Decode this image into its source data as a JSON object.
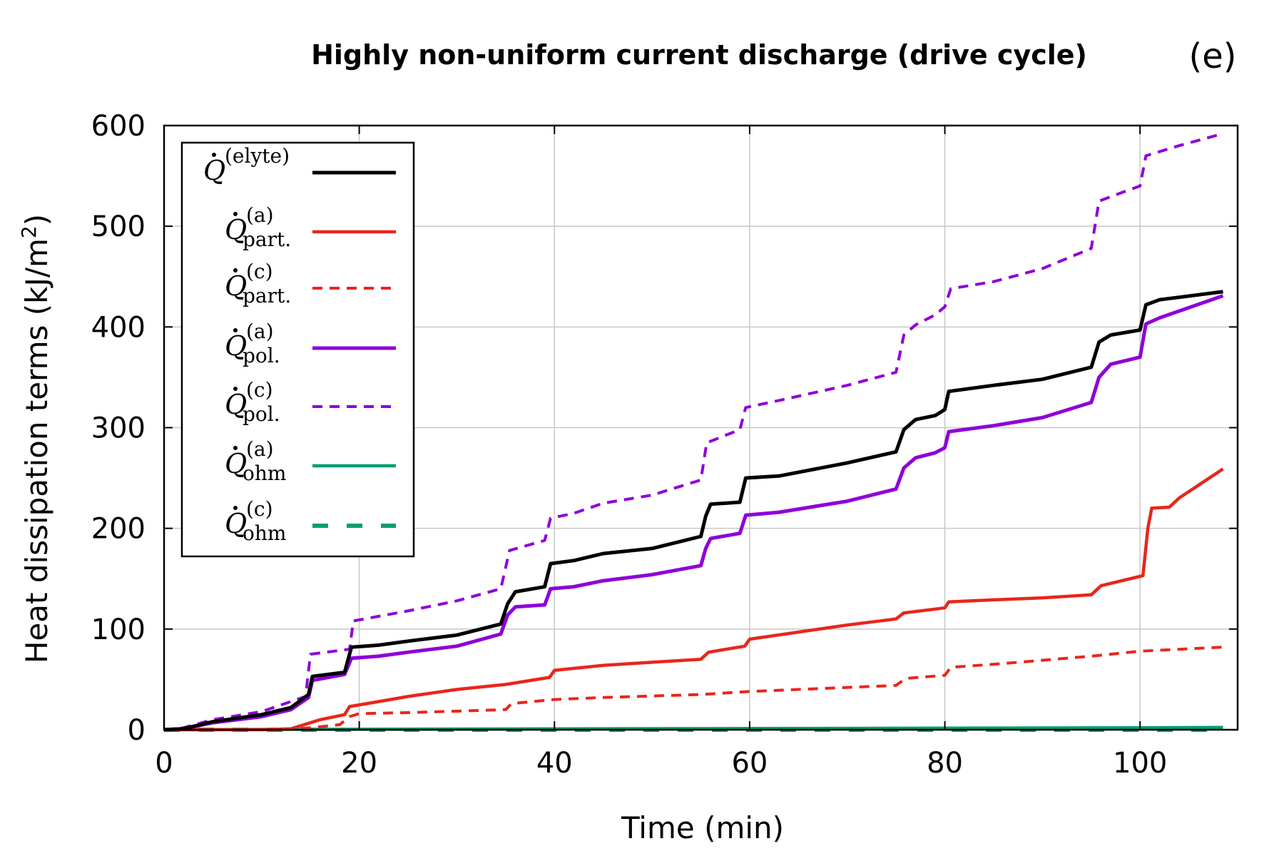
{
  "chart_data": {
    "type": "line",
    "title": "Highly non-uniform current discharge (drive cycle)",
    "panel_label": "(e)",
    "xlabel": "Time (min)",
    "ylabel": "Heat dissipation terms (kJ/m2)",
    "ylabel_unit_base": "Heat dissipation terms (kJ/m",
    "ylabel_unit_sup": "2",
    "ylabel_unit_end": ")",
    "xlim": [
      0,
      110
    ],
    "ylim": [
      0,
      600
    ],
    "xticks": [
      0,
      20,
      40,
      60,
      80,
      100
    ],
    "yticks": [
      0,
      100,
      200,
      300,
      400,
      500,
      600
    ],
    "grid": true,
    "legend_position": "top-left",
    "series": [
      {
        "name": "Q (elyte)",
        "symbol": "Q",
        "sup": "(elyte)",
        "sub": "",
        "color": "#000000",
        "dash": "solid",
        "width": 5,
        "x": [
          0,
          2,
          5,
          10,
          13,
          14.8,
          15.2,
          18.5,
          19.2,
          22,
          25,
          30,
          34.5,
          35.2,
          36,
          39,
          39.6,
          42,
          45,
          50,
          55,
          55.5,
          56,
          59,
          59.6,
          63,
          70,
          75,
          75.8,
          77,
          79,
          80,
          80.4,
          85,
          90,
          95,
          95.8,
          97,
          100,
          100.6,
          102,
          108.5
        ],
        "y": [
          0,
          1,
          8,
          15,
          22,
          35,
          53,
          57,
          82,
          84,
          88,
          94,
          105,
          125,
          137,
          142,
          165,
          168,
          175,
          180,
          192,
          212,
          224,
          226,
          250,
          252,
          265,
          276,
          298,
          308,
          312,
          318,
          336,
          342,
          348,
          360,
          385,
          392,
          397,
          422,
          427,
          435
        ]
      },
      {
        "name": "Q part. (a)",
        "symbol": "Q",
        "sup": "(a)",
        "sub": "part.",
        "color": "#e8261a",
        "dash": "solid",
        "width": 4.5,
        "x": [
          0,
          10,
          13,
          14,
          16,
          18.5,
          19,
          22,
          25,
          30,
          35,
          39.5,
          40,
          45,
          50,
          55,
          55.8,
          59.5,
          60,
          65,
          70,
          75,
          75.8,
          80,
          80.4,
          85,
          90,
          95,
          96,
          100.3,
          100.8,
          101.2,
          103,
          104,
          108.5
        ],
        "y": [
          0,
          0,
          1,
          4,
          10,
          15,
          23,
          28,
          33,
          40,
          45,
          52,
          59,
          64,
          67,
          70,
          77,
          83,
          90,
          97,
          104,
          110,
          116,
          121,
          127,
          129,
          131,
          134,
          143,
          153,
          200,
          220,
          221,
          230,
          259
        ]
      },
      {
        "name": "Q part. (c)",
        "symbol": "Q",
        "sup": "(c)",
        "sub": "part.",
        "color": "#e8261a",
        "dash": "dashed",
        "width": 4,
        "x": [
          0,
          12,
          15,
          18,
          19,
          20,
          25,
          35,
          35.6,
          40,
          45,
          55,
          60,
          65,
          70,
          75,
          76,
          80,
          80.6,
          85,
          90,
          95,
          100,
          108.5
        ],
        "y": [
          0,
          0,
          2,
          5,
          13,
          16,
          17,
          20,
          26,
          30,
          32,
          35,
          38,
          40,
          42,
          44,
          51,
          54,
          62,
          65,
          69,
          73,
          78,
          82
        ]
      },
      {
        "name": "Q pol. (a)",
        "symbol": "Q",
        "sup": "(a)",
        "sub": "pol.",
        "color": "#8f00d9",
        "dash": "solid",
        "width": 5,
        "x": [
          0,
          2,
          5,
          10,
          13,
          14.8,
          15.2,
          18.5,
          19.2,
          22,
          25,
          30,
          34.5,
          35.2,
          36,
          39,
          39.6,
          42,
          45,
          50,
          55,
          55.5,
          56,
          59,
          59.6,
          63,
          70,
          75,
          75.8,
          77,
          79,
          80,
          80.4,
          85,
          90,
          95,
          95.8,
          97,
          100,
          100.6,
          102,
          108.5
        ],
        "y": [
          0,
          1,
          7,
          13,
          20,
          32,
          49,
          55,
          71,
          73,
          77,
          83,
          95,
          114,
          122,
          124,
          140,
          142,
          148,
          154,
          163,
          180,
          190,
          195,
          213,
          216,
          227,
          239,
          260,
          270,
          275,
          280,
          296,
          302,
          310,
          325,
          350,
          363,
          370,
          403,
          409,
          431
        ]
      },
      {
        "name": "Q pol. (c)",
        "symbol": "Q",
        "sup": "(c)",
        "sub": "pol.",
        "color": "#8f00d9",
        "dash": "dashed",
        "width": 4,
        "x": [
          0,
          2,
          5,
          10,
          14.5,
          15,
          19,
          19.4,
          25,
          30,
          34.5,
          35.4,
          39,
          39.6,
          42,
          45,
          50,
          55,
          55.6,
          59,
          59.6,
          63,
          70,
          75,
          75.8,
          77,
          79,
          80,
          80.6,
          85,
          90,
          95,
          95.8,
          98,
          100,
          100.6,
          104,
          108.5
        ],
        "y": [
          0,
          2,
          10,
          18,
          33,
          75,
          80,
          108,
          118,
          128,
          140,
          178,
          188,
          210,
          215,
          225,
          233,
          248,
          285,
          298,
          320,
          327,
          342,
          355,
          392,
          402,
          412,
          420,
          438,
          445,
          458,
          478,
          525,
          533,
          540,
          570,
          580,
          592
        ]
      },
      {
        "name": "Q ohm (a)",
        "symbol": "Q",
        "sup": "(a)",
        "sub": "ohm",
        "color": "#009e73",
        "dash": "solid",
        "width": 4.5,
        "x": [
          0,
          20,
          40,
          60,
          80,
          100,
          108.5
        ],
        "y": [
          0,
          0.6,
          0.9,
          1.2,
          1.6,
          2.0,
          2.3
        ]
      },
      {
        "name": "Q ohm (c)",
        "symbol": "Q",
        "sup": "(c)",
        "sub": "ohm",
        "color": "#009e73",
        "dash": "dashed-thick",
        "width": 6,
        "x": [
          0,
          108.5
        ],
        "y": [
          0,
          0
        ]
      }
    ]
  }
}
